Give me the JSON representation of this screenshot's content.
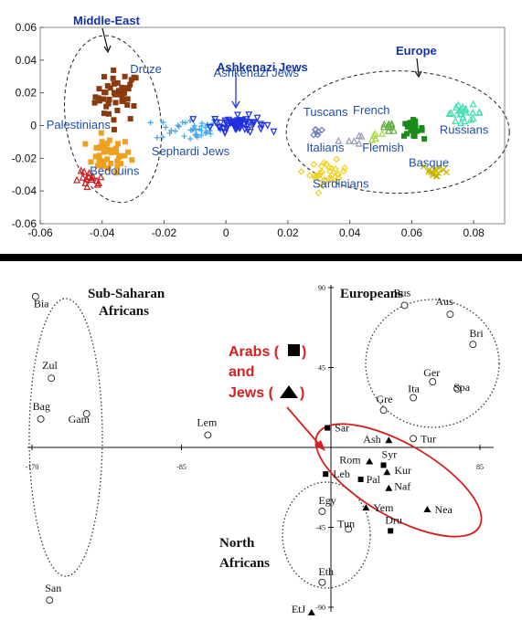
{
  "chart_data": [
    {
      "type": "scatter",
      "xlim": [
        -0.06,
        0.09
      ],
      "ylim": [
        -0.06,
        0.06
      ],
      "x_ticks": [
        "-0.06",
        "-0.04",
        "-0.02",
        "0",
        "0.02",
        "0.04",
        "0.06",
        "0.08"
      ],
      "y_ticks": [
        "0.06",
        "0.04",
        "0.02",
        "0",
        "-0.02",
        "-0.04",
        "-0.06"
      ],
      "grid": false,
      "annotations": [
        {
          "label": "Middle-East",
          "style": "bold"
        },
        {
          "label": "Ashkenazi Jews",
          "style": "bold"
        },
        {
          "label": "Europe",
          "style": "bold"
        }
      ],
      "series": [
        {
          "name": "Druze",
          "color": "#8b3a0e",
          "marker": "square",
          "center": [
            -0.035,
            0.018
          ],
          "spread": [
            0.006,
            0.013
          ],
          "n": 45,
          "label_at": [
            -0.031,
            0.032
          ]
        },
        {
          "name": "Palestinians",
          "color": "#f0a020",
          "marker": "square",
          "center": [
            -0.038,
            -0.018
          ],
          "spread": [
            0.006,
            0.009
          ],
          "n": 40,
          "label_at": [
            -0.058,
            -0.002
          ]
        },
        {
          "name": "Bedouins",
          "color": "#c81e1e",
          "marker": "triangle",
          "center": [
            -0.044,
            -0.034
          ],
          "spread": [
            0.004,
            0.005
          ],
          "n": 16,
          "label_at": [
            -0.044,
            -0.03
          ]
        },
        {
          "name": "Sephardi Jews",
          "color": "#4aa8e8",
          "marker": "plus",
          "center": [
            -0.012,
            -0.002
          ],
          "spread": [
            0.009,
            0.006
          ],
          "n": 40,
          "label_at": [
            -0.024,
            -0.018
          ]
        },
        {
          "name": "Ashkenazi Jews",
          "color": "#2030e0",
          "marker": "triangle-down",
          "center": [
            0.004,
            0.001
          ],
          "spread": [
            0.007,
            0.004
          ],
          "n": 70,
          "label_at": [
            -0.004,
            0.03
          ]
        },
        {
          "name": "Tuscans",
          "color": "#6a7ab8",
          "marker": "diamond",
          "center": [
            0.029,
            -0.004
          ],
          "spread": [
            0.003,
            0.003
          ],
          "n": 6,
          "label_at": [
            0.025,
            0.006
          ]
        },
        {
          "name": "Italians",
          "color": "#9a9ab8",
          "marker": "triangle",
          "center": [
            0.04,
            -0.008
          ],
          "spread": [
            0.003,
            0.003
          ],
          "n": 6,
          "label_at": [
            0.026,
            -0.016
          ]
        },
        {
          "name": "French",
          "color": "#60b040",
          "marker": "triangle",
          "center": [
            0.053,
            -0.001
          ],
          "spread": [
            0.004,
            0.004
          ],
          "n": 10,
          "label_at": [
            0.041,
            0.007
          ]
        },
        {
          "name": "Flemish",
          "color": "#a8d83a",
          "marker": "triangle",
          "center": [
            0.048,
            -0.007
          ],
          "spread": [
            0.002,
            0.002
          ],
          "n": 5,
          "label_at": [
            0.044,
            -0.016
          ]
        },
        {
          "name": "Sardinians",
          "color": "#f0d020",
          "marker": "diamond",
          "center": [
            0.033,
            -0.029
          ],
          "spread": [
            0.005,
            0.006
          ],
          "n": 30,
          "label_at": [
            0.028,
            -0.038
          ]
        },
        {
          "name": "Basque",
          "color": "#c8b400",
          "marker": "x",
          "center": [
            0.068,
            -0.028
          ],
          "spread": [
            0.004,
            0.004
          ],
          "n": 14,
          "label_at": [
            0.059,
            -0.025
          ]
        },
        {
          "name": "Russians",
          "color": "#40e0b0",
          "marker": "triangle",
          "center": [
            0.077,
            0.008
          ],
          "spread": [
            0.005,
            0.004
          ],
          "n": 22,
          "label_at": [
            0.069,
            -0.005
          ]
        },
        {
          "name": "",
          "color": "#1a8a1a",
          "marker": "square",
          "center": [
            0.06,
            -0.002
          ],
          "spread": [
            0.003,
            0.004
          ],
          "n": 25
        }
      ]
    },
    {
      "type": "scatter",
      "xlim": [
        -170,
        85
      ],
      "ylim": [
        -90,
        90
      ],
      "x_ticks": [
        "-170",
        "-85",
        "85"
      ],
      "y_ticks": [
        "90",
        "45",
        "-45",
        "-90"
      ],
      "groups": [
        {
          "label": "Sub-Saharan",
          "label2": "Africans"
        },
        {
          "label": "Europeans",
          "label2": ""
        },
        {
          "label": "North",
          "label2": "Africans"
        }
      ],
      "legend": {
        "arabs": "Arabs (",
        "and": "and",
        "jews": "Jews (",
        "close": ")"
      },
      "points": [
        {
          "label": "Bia",
          "x": -168,
          "y": 85,
          "marker": "circle"
        },
        {
          "label": "Zul",
          "x": -159,
          "y": 39,
          "marker": "circle"
        },
        {
          "label": "Bag",
          "x": -165,
          "y": 16,
          "marker": "circle"
        },
        {
          "label": "Gam",
          "x": -139,
          "y": 19,
          "marker": "circle"
        },
        {
          "label": "San",
          "x": -160,
          "y": -86,
          "marker": "circle"
        },
        {
          "label": "Lem",
          "x": -70,
          "y": 7,
          "marker": "circle"
        },
        {
          "label": "Rus",
          "x": 42,
          "y": 80,
          "marker": "circle"
        },
        {
          "label": "Aus",
          "x": 68,
          "y": 75,
          "marker": "circle"
        },
        {
          "label": "Bri",
          "x": 81,
          "y": 58,
          "marker": "circle"
        },
        {
          "label": "Ger",
          "x": 58,
          "y": 37,
          "marker": "circle"
        },
        {
          "label": "Spa",
          "x": 72,
          "y": 33,
          "marker": "circle"
        },
        {
          "label": "Ita",
          "x": 47,
          "y": 28,
          "marker": "circle"
        },
        {
          "label": "Gre",
          "x": 30,
          "y": 21,
          "marker": "circle"
        },
        {
          "label": "Tur",
          "x": 47,
          "y": 5,
          "marker": "circle"
        },
        {
          "label": "Egy",
          "x": -5,
          "y": -36,
          "marker": "circle"
        },
        {
          "label": "Tun",
          "x": 10,
          "y": -46,
          "marker": "circle"
        },
        {
          "label": "Eth",
          "x": -5,
          "y": -76,
          "marker": "circle"
        },
        {
          "label": "Sar",
          "x": -2,
          "y": 11,
          "marker": "square"
        },
        {
          "label": "Leb",
          "x": -3,
          "y": -15,
          "marker": "square"
        },
        {
          "label": "Syr",
          "x": 30,
          "y": -10,
          "marker": "square"
        },
        {
          "label": "Pal",
          "x": 17,
          "y": -18,
          "marker": "square"
        },
        {
          "label": "Dru",
          "x": 34,
          "y": -47,
          "marker": "square"
        },
        {
          "label": "Ash",
          "x": 33,
          "y": 4,
          "marker": "triangle"
        },
        {
          "label": "Rom",
          "x": 22,
          "y": -8,
          "marker": "triangle"
        },
        {
          "label": "Kur",
          "x": 32,
          "y": -14,
          "marker": "triangle"
        },
        {
          "label": "Naf",
          "x": 33,
          "y": -23,
          "marker": "triangle"
        },
        {
          "label": "Yem",
          "x": 20,
          "y": -34,
          "marker": "triangle"
        },
        {
          "label": "Nea",
          "x": 55,
          "y": -35,
          "marker": "triangle"
        },
        {
          "label": "EtJ",
          "x": -11,
          "y": -93,
          "marker": "triangle"
        }
      ]
    }
  ]
}
